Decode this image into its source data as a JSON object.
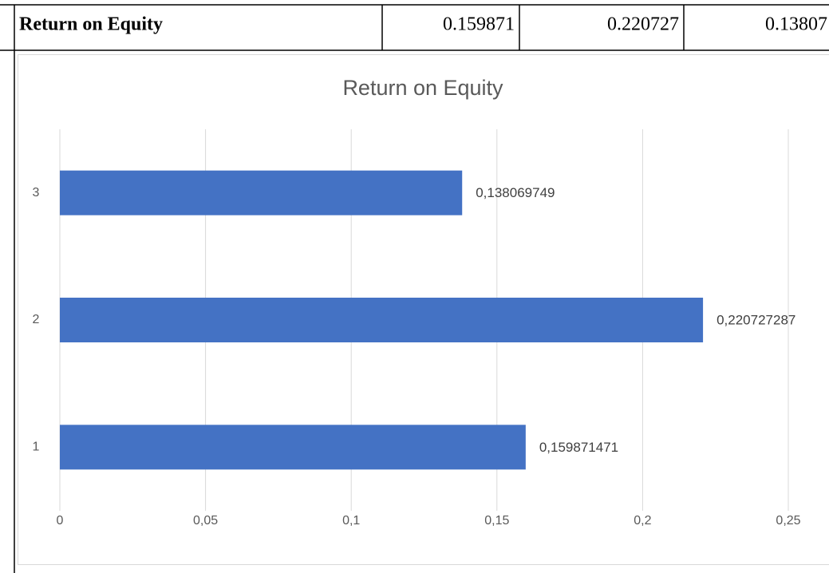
{
  "table": {
    "rows": [
      [
        "Return on Equity",
        0.159871,
        0.220727,
        0.13807
      ]
    ]
  },
  "chart_data": {
    "type": "barh",
    "title": "Return on Equity",
    "categories": [
      "1",
      "2",
      "3"
    ],
    "values": [
      0.159871471,
      0.220727287,
      0.138069749
    ],
    "value_labels": [
      "0,159871471",
      "0,220727287",
      "0,138069749"
    ],
    "color": "#4472c4",
    "xlim": [
      0,
      0.25
    ],
    "xticks": [
      0,
      {
        "value": 0.05,
        "label": "0,05"
      },
      {
        "value": 0.1,
        "label": "0,1"
      },
      {
        "value": 0.15,
        "label": "0,15"
      },
      {
        "value": 0.2,
        "label": "0,2"
      },
      {
        "value": 0.25,
        "label": "0,25"
      }
    ],
    "grid": true
  }
}
